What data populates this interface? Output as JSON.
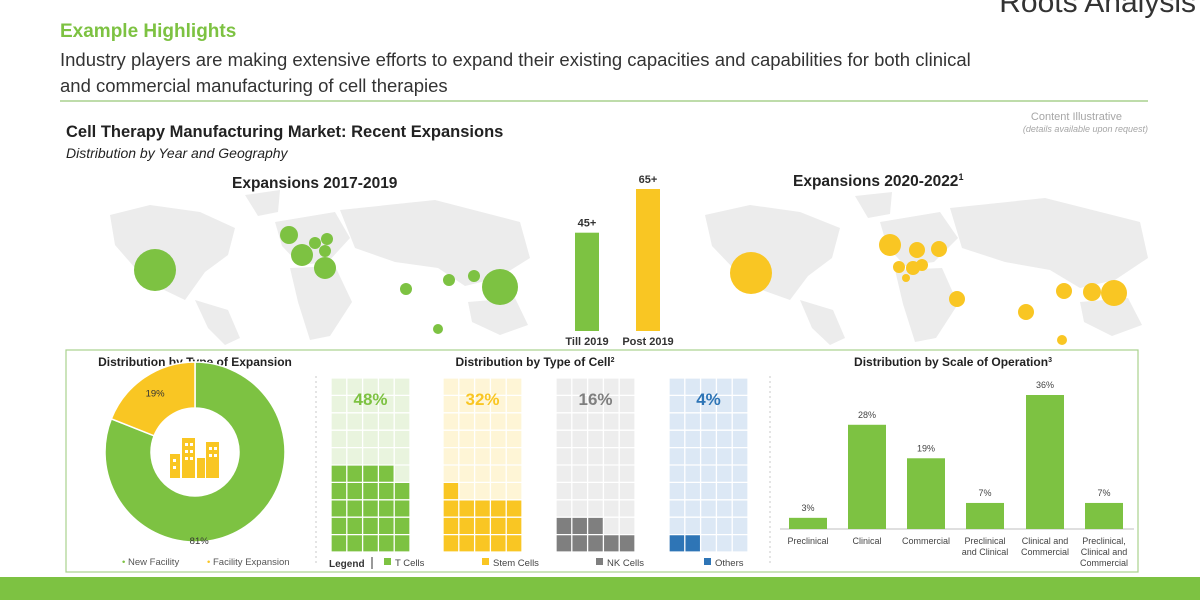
{
  "header": {
    "brand": "Roots Analysis",
    "section_title": "Example Highlights",
    "subtitle_line1": "Industry players are making extensive efforts to expand their existing capacities and capabilities for both clinical",
    "subtitle_line2": "and commercial manufacturing of cell therapies"
  },
  "notice": {
    "title": "Content Illustrative",
    "subtitle": "(details available upon request)"
  },
  "colors": {
    "green": "#7DC242",
    "yellow": "#F9C623",
    "gray": "#7F7F7F",
    "blue": "#2E75B6",
    "accent_title": "#7DC242",
    "footer": "#7DC242"
  },
  "chart_data": [
    {
      "type": "bar",
      "title": "Cell Therapy Manufacturing Market: Recent Expansions",
      "subtitle": "Distribution by Year and Geography",
      "left_map_label": "Expansions 2017-2019",
      "right_map_label": "Expansions 2020-2022",
      "right_map_label_sup": "1",
      "categories": [
        "Till 2019",
        "Post 2019"
      ],
      "values": [
        45,
        65
      ],
      "value_labels": [
        "45+",
        "65+"
      ],
      "bar_colors": [
        "#7DC242",
        "#F9C623"
      ]
    },
    {
      "type": "pie",
      "title": "Distribution by Type of Expansion",
      "slices": [
        {
          "label": "New Facility",
          "value": 81,
          "display": "81%",
          "color": "#7DC242"
        },
        {
          "label": "Facility Expansion",
          "value": 19,
          "display": "19%",
          "color": "#F9C623"
        }
      ]
    },
    {
      "type": "bar",
      "title": "Distribution by Type of Cell",
      "title_sup": "2",
      "legend_title": "Legend",
      "series": [
        {
          "name": "T Cells",
          "value": 48,
          "display": "48%",
          "color": "#7DC242"
        },
        {
          "name": "Stem Cells",
          "value": 32,
          "display": "32%",
          "color": "#F9C623"
        },
        {
          "name": "NK Cells",
          "value": 16,
          "display": "16%",
          "color": "#7F7F7F"
        },
        {
          "name": "Others",
          "value": 4,
          "display": "4%",
          "color": "#2E75B6"
        }
      ]
    },
    {
      "type": "bar",
      "title": "Distribution by Scale of Operation",
      "title_sup": "3",
      "categories": [
        "Preclinical",
        "Clinical",
        "Commercial",
        "Preclinical and Clinical",
        "Clinical and Commercial",
        "Preclinical, Clinical and Commercial"
      ],
      "category_lines": [
        [
          "Preclinical"
        ],
        [
          "Clinical"
        ],
        [
          "Commercial"
        ],
        [
          "Preclinical",
          "and Clinical"
        ],
        [
          "Clinical and",
          "Commercial"
        ],
        [
          "Preclinical,",
          "Clinical and",
          "Commercial"
        ]
      ],
      "values": [
        3,
        28,
        19,
        7,
        36,
        7
      ],
      "value_labels": [
        "3%",
        "28%",
        "19%",
        "7%",
        "36%",
        "7%"
      ],
      "color": "#7DC242",
      "ylim": [
        0,
        36
      ]
    }
  ]
}
